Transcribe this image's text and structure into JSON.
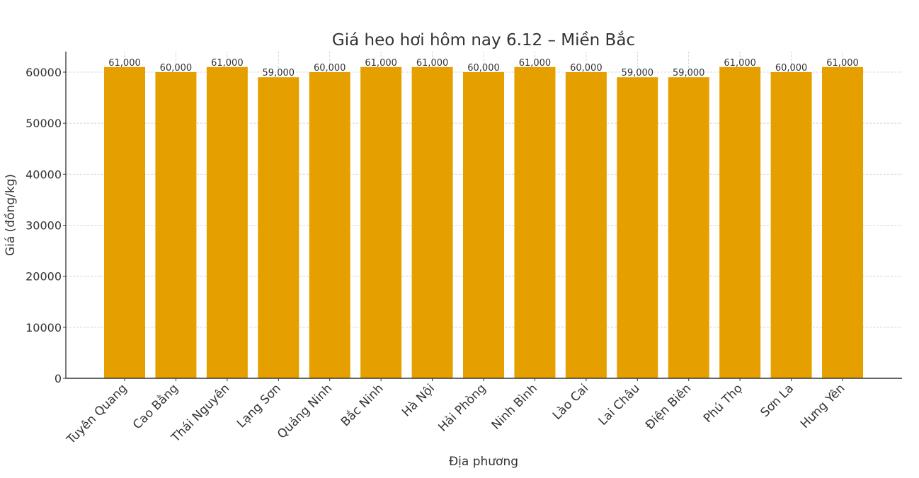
{
  "chart_data": {
    "type": "bar",
    "title": "Giá heo hơi hôm nay 6.12 – Miền Bắc",
    "xlabel": "Địa phương",
    "ylabel": "Giá (đồng/kg)",
    "categories": [
      "Tuyên Quang",
      "Cao Bằng",
      "Thái Nguyên",
      "Lạng Sơn",
      "Quảng Ninh",
      "Bắc Ninh",
      "Hà Nội",
      "Hải Phòng",
      "Ninh Bình",
      "Lào Cai",
      "Lai Châu",
      "Điện Biên",
      "Phú Thọ",
      "Sơn La",
      "Hưng Yên"
    ],
    "values": [
      61000,
      60000,
      61000,
      59000,
      60000,
      61000,
      61000,
      60000,
      61000,
      60000,
      59000,
      59000,
      61000,
      60000,
      61000
    ],
    "value_labels": [
      "61,000",
      "60,000",
      "61,000",
      "59,000",
      "60,000",
      "61,000",
      "61,000",
      "60,000",
      "61,000",
      "60,000",
      "59,000",
      "59,000",
      "61,000",
      "60,000",
      "61,000"
    ],
    "yticks": [
      0,
      10000,
      20000,
      30000,
      40000,
      50000,
      60000
    ],
    "ylim": [
      0,
      64000
    ],
    "grid": true,
    "grid_style": "dashed",
    "legend": null,
    "bar_color": "#E5A000",
    "x_tick_rotation": 45
  }
}
